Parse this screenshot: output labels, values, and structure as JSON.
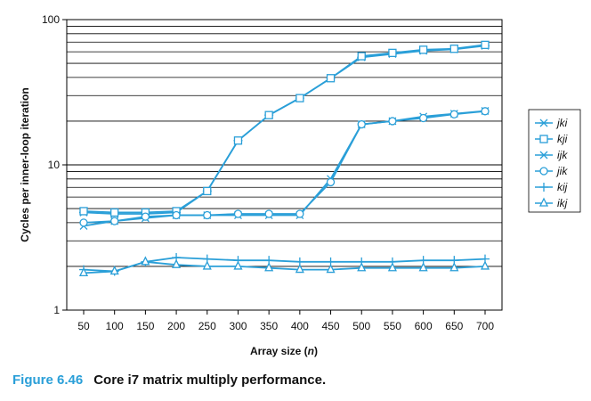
{
  "chart_data": {
    "type": "line",
    "x": [
      50,
      100,
      150,
      200,
      250,
      300,
      350,
      400,
      450,
      500,
      550,
      600,
      650,
      700
    ],
    "x_tick_labels": [
      "50",
      "100",
      "150",
      "200",
      "250",
      "300",
      "350",
      "400",
      "450",
      "500",
      "550",
      "600",
      "650",
      "700"
    ],
    "xlabel_prefix": "Array size (",
    "xlabel_var": "n",
    "xlabel_suffix": ")",
    "ylabel": "Cycles per inner-loop iteration",
    "yscale": "log",
    "ylim": [
      1,
      100
    ],
    "y_tick_labels": [
      "1",
      "10",
      "100"
    ],
    "grid": "horizontal, log-scale minor lines",
    "legend_position": "right",
    "series_color": "#2a9fd8",
    "series": [
      {
        "name": "jki",
        "marker": "star",
        "values": [
          4.7,
          4.6,
          4.6,
          4.7,
          6.6,
          14.7,
          22.0,
          28.8,
          39.5,
          55.0,
          58.0,
          61.0,
          62.5,
          66.0
        ]
      },
      {
        "name": "kji",
        "marker": "square",
        "values": [
          4.8,
          4.7,
          4.7,
          4.8,
          6.6,
          14.7,
          22.0,
          28.8,
          39.5,
          56.0,
          59.0,
          62.0,
          63.0,
          67.0
        ]
      },
      {
        "name": "ijk",
        "marker": "x",
        "values": [
          3.8,
          4.1,
          4.3,
          4.5,
          4.5,
          4.5,
          4.5,
          4.5,
          8.0,
          19.0,
          20.0,
          21.5,
          22.5,
          23.5
        ]
      },
      {
        "name": "jik",
        "marker": "circle",
        "values": [
          4.0,
          4.1,
          4.4,
          4.5,
          4.5,
          4.6,
          4.6,
          4.6,
          7.6,
          19.0,
          20.0,
          21.0,
          22.3,
          23.4
        ]
      },
      {
        "name": "kij",
        "marker": "plus",
        "values": [
          1.9,
          1.85,
          2.15,
          2.3,
          2.25,
          2.2,
          2.2,
          2.15,
          2.15,
          2.15,
          2.15,
          2.2,
          2.2,
          2.25
        ]
      },
      {
        "name": "ikj",
        "marker": "triangle",
        "values": [
          1.8,
          1.85,
          2.15,
          2.05,
          2.0,
          2.0,
          1.95,
          1.9,
          1.9,
          1.95,
          1.95,
          1.95,
          1.95,
          2.0
        ]
      }
    ]
  },
  "caption": {
    "figure_label": "Figure 6.46",
    "text": "Core i7 matrix multiply performance."
  }
}
